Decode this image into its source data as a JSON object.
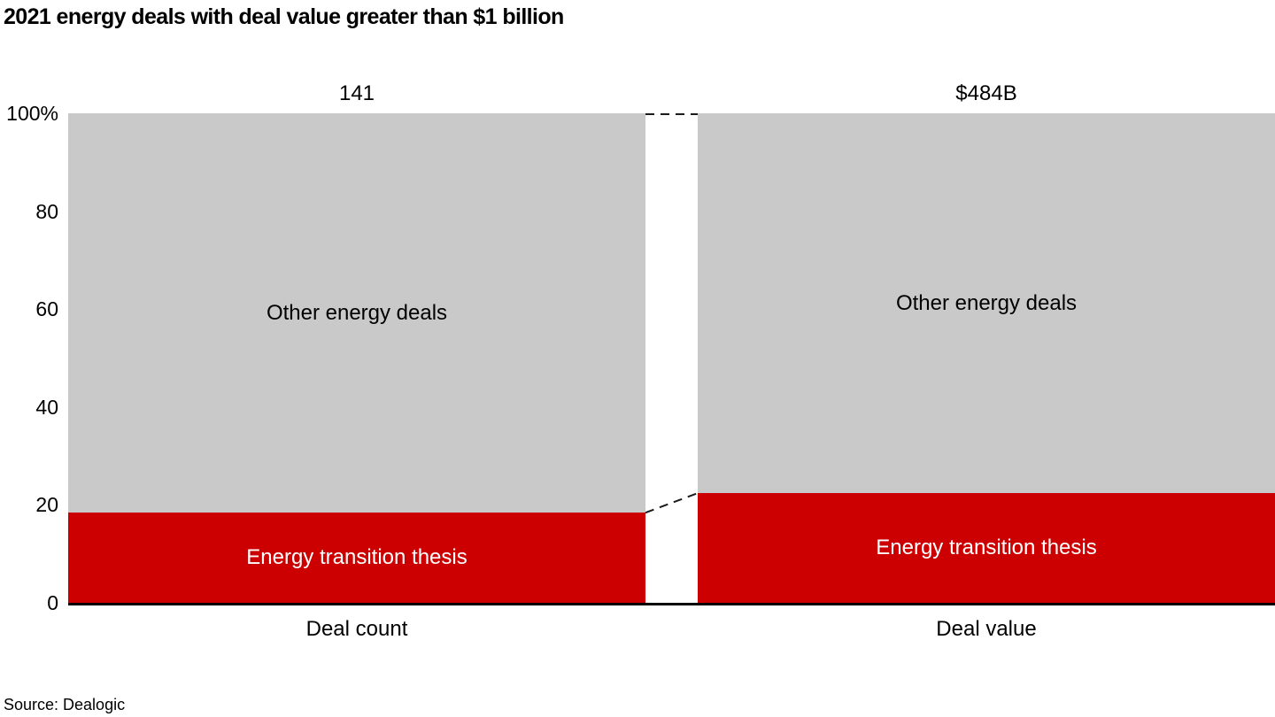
{
  "title": "2021 energy deals with deal value greater than $1 billion",
  "source": "Source: Dealogic",
  "colors": {
    "transition_red": "#cc0000",
    "other_gray": "#c9c9c9",
    "baseline_black": "#000000",
    "connector_dash": "#1a1a1a"
  },
  "chart_data": {
    "type": "bar",
    "variant": "100%-stacked-columns-with-dashed-connectors",
    "title": "2021 energy deals with deal value greater than $1 billion",
    "categories": [
      "Deal count",
      "Deal value"
    ],
    "totals": [
      "141",
      "$484B"
    ],
    "series": [
      {
        "name": "Energy transition thesis",
        "color": "#cc0000",
        "values_pct": [
          18.4,
          22.4
        ]
      },
      {
        "name": "Other energy deals",
        "color": "#c9c9c9",
        "values_pct": [
          81.6,
          77.6
        ]
      }
    ],
    "y_axis": {
      "ticks": [
        "100%",
        "80",
        "60",
        "40",
        "20",
        "0"
      ],
      "range": [
        0,
        100
      ],
      "grid": false
    },
    "legend": "none",
    "source": "Source: Dealogic"
  }
}
